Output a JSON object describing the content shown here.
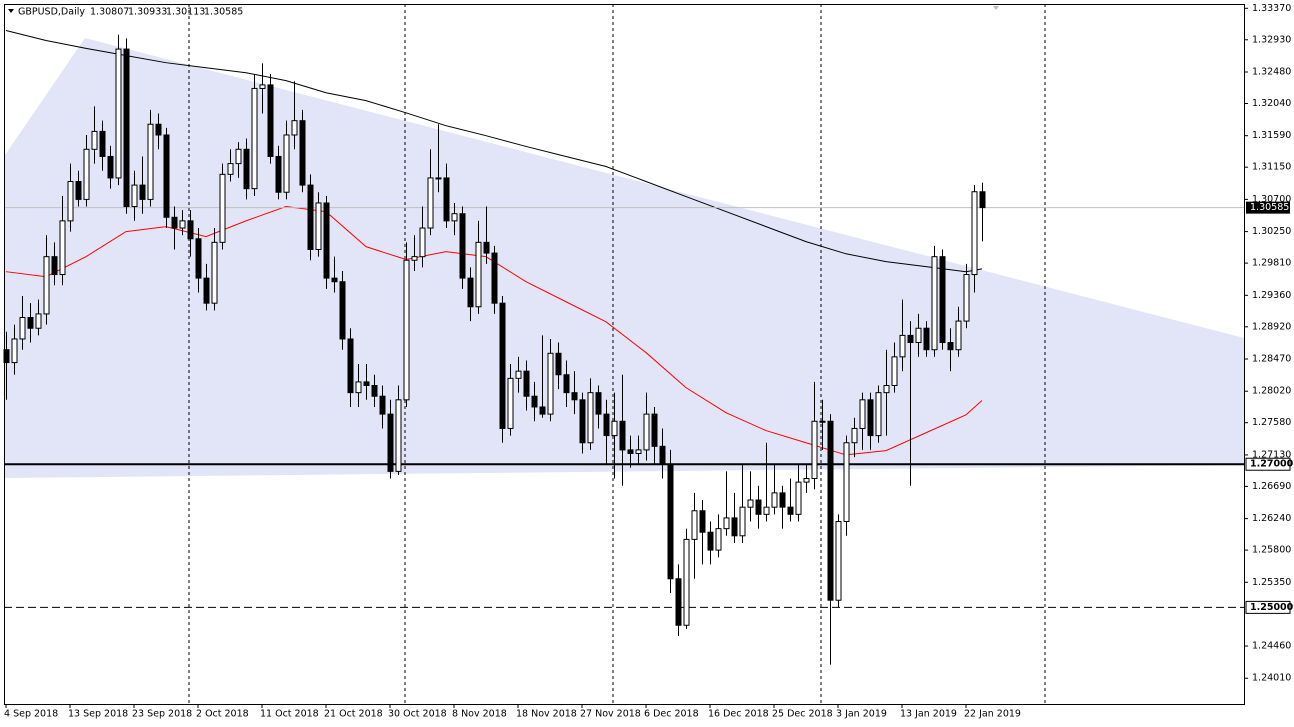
{
  "chart_data": {
    "type": "candlestick",
    "title": "GBPUSD,Daily",
    "categories": [
      "4 Sep 2018",
      null,
      null,
      null,
      null,
      null,
      null,
      null,
      "13 Sep 2018",
      null,
      null,
      null,
      null,
      null,
      null,
      null,
      "23 Sep 2018",
      null,
      null,
      null,
      null,
      null,
      null,
      null,
      "2 Oct 2018",
      null,
      null,
      null,
      null,
      null,
      null,
      null,
      "11 Oct 2018",
      null,
      null,
      null,
      null,
      null,
      null,
      null,
      "21 Oct 2018",
      null,
      null,
      null,
      null,
      null,
      null,
      null,
      "30 Oct 2018",
      null,
      null,
      null,
      null,
      null,
      null,
      null,
      "8 Nov 2018",
      null,
      null,
      null,
      null,
      null,
      null,
      null,
      "18 Nov 2018",
      null,
      null,
      null,
      null,
      null,
      null,
      null,
      "27 Nov 2018",
      null,
      null,
      null,
      null,
      null,
      null,
      null,
      "6 Dec 2018",
      null,
      null,
      null,
      null,
      null,
      null,
      null,
      "16 Dec 2018",
      null,
      null,
      null,
      null,
      null,
      null,
      null,
      "25 Dec 2018",
      null,
      null,
      null,
      null,
      null,
      null,
      null,
      "3 Jan 2019",
      null,
      null,
      null,
      null,
      null,
      null,
      null,
      "13 Jan 2019",
      null,
      null,
      null,
      null,
      null,
      null,
      null,
      "22 Jan 2019",
      null,
      null
    ],
    "candles": [
      [
        1.286,
        1.2885,
        1.279,
        1.2842
      ],
      [
        1.2842,
        1.2895,
        1.2825,
        1.2875
      ],
      [
        1.2875,
        1.2935,
        1.286,
        1.2905
      ],
      [
        1.2905,
        1.2925,
        1.287,
        1.289
      ],
      [
        1.289,
        1.293,
        1.288,
        1.291
      ],
      [
        1.291,
        1.302,
        1.2895,
        1.299
      ],
      [
        1.299,
        1.301,
        1.295,
        1.2965
      ],
      [
        1.2965,
        1.3075,
        1.295,
        1.304
      ],
      [
        1.304,
        1.312,
        1.3025,
        1.3095
      ],
      [
        1.3095,
        1.311,
        1.306,
        1.307
      ],
      [
        1.307,
        1.316,
        1.306,
        1.314
      ],
      [
        1.314,
        1.32,
        1.312,
        1.3165
      ],
      [
        1.3165,
        1.318,
        1.311,
        1.313
      ],
      [
        1.313,
        1.3145,
        1.3085,
        1.31
      ],
      [
        1.31,
        1.33,
        1.309,
        1.328
      ],
      [
        1.328,
        1.3295,
        1.305,
        1.306
      ],
      [
        1.306,
        1.311,
        1.304,
        1.309
      ],
      [
        1.309,
        1.313,
        1.305,
        1.307
      ],
      [
        1.307,
        1.3195,
        1.306,
        1.3175
      ],
      [
        1.3175,
        1.319,
        1.314,
        1.316
      ],
      [
        1.316,
        1.317,
        1.303,
        1.3045
      ],
      [
        1.3045,
        1.306,
        1.3,
        1.303
      ],
      [
        1.303,
        1.3055,
        1.302,
        1.304
      ],
      [
        1.304,
        1.3055,
        1.299,
        1.3015
      ],
      [
        1.3015,
        1.303,
        1.294,
        1.296
      ],
      [
        1.296,
        1.298,
        1.2915,
        1.2925
      ],
      [
        1.2925,
        1.303,
        1.2915,
        1.301
      ],
      [
        1.301,
        1.312,
        1.3,
        1.3105
      ],
      [
        1.3105,
        1.314,
        1.3095,
        1.312
      ],
      [
        1.312,
        1.315,
        1.31,
        1.314
      ],
      [
        1.314,
        1.3155,
        1.307,
        1.3085
      ],
      [
        1.3085,
        1.3245,
        1.3075,
        1.3225
      ],
      [
        1.3225,
        1.326,
        1.319,
        1.323
      ],
      [
        1.323,
        1.3245,
        1.312,
        1.313
      ],
      [
        1.313,
        1.3145,
        1.307,
        1.308
      ],
      [
        1.308,
        1.318,
        1.307,
        1.316
      ],
      [
        1.316,
        1.3235,
        1.314,
        1.318
      ],
      [
        1.318,
        1.3195,
        1.308,
        1.309
      ],
      [
        1.309,
        1.3105,
        1.2985,
        1.3
      ],
      [
        1.3,
        1.308,
        1.299,
        1.3065
      ],
      [
        1.3065,
        1.3075,
        1.2945,
        1.296
      ],
      [
        1.296,
        1.299,
        1.294,
        1.2955
      ],
      [
        1.2955,
        1.297,
        1.286,
        1.2875
      ],
      [
        1.2875,
        1.289,
        1.278,
        1.28
      ],
      [
        1.28,
        1.284,
        1.278,
        1.2815
      ],
      [
        1.2815,
        1.284,
        1.279,
        1.281
      ],
      [
        1.281,
        1.2825,
        1.278,
        1.2795
      ],
      [
        1.2795,
        1.281,
        1.275,
        1.277
      ],
      [
        1.277,
        1.279,
        1.268,
        1.269
      ],
      [
        1.269,
        1.281,
        1.2685,
        1.279
      ],
      [
        1.279,
        1.301,
        1.278,
        1.2985
      ],
      [
        1.2985,
        1.302,
        1.297,
        1.299
      ],
      [
        1.299,
        1.306,
        1.2975,
        1.303
      ],
      [
        1.303,
        1.314,
        1.302,
        1.31
      ],
      [
        1.31,
        1.3175,
        1.308,
        1.31
      ],
      [
        1.31,
        1.312,
        1.303,
        1.304
      ],
      [
        1.304,
        1.3065,
        1.302,
        1.305
      ],
      [
        1.305,
        1.306,
        1.2945,
        1.296
      ],
      [
        1.296,
        1.2975,
        1.29,
        1.292
      ],
      [
        1.292,
        1.304,
        1.291,
        1.301
      ],
      [
        1.301,
        1.306,
        1.298,
        1.2995
      ],
      [
        1.2995,
        1.3005,
        1.291,
        1.2925
      ],
      [
        1.2925,
        1.2935,
        1.273,
        1.275
      ],
      [
        1.275,
        1.284,
        1.274,
        1.282
      ],
      [
        1.282,
        1.285,
        1.28,
        1.283
      ],
      [
        1.283,
        1.2845,
        1.2775,
        1.2795
      ],
      [
        1.2795,
        1.2815,
        1.276,
        1.278
      ],
      [
        1.278,
        1.288,
        1.2765,
        1.277
      ],
      [
        1.277,
        1.2875,
        1.276,
        1.2855
      ],
      [
        1.2855,
        1.287,
        1.2805,
        1.2825
      ],
      [
        1.2825,
        1.2845,
        1.278,
        1.28
      ],
      [
        1.28,
        1.283,
        1.277,
        1.279
      ],
      [
        1.279,
        1.28,
        1.2715,
        1.273
      ],
      [
        1.273,
        1.282,
        1.272,
        1.28
      ],
      [
        1.28,
        1.281,
        1.275,
        1.277
      ],
      [
        1.277,
        1.279,
        1.27,
        1.274
      ],
      [
        1.274,
        1.28,
        1.268,
        1.276
      ],
      [
        1.276,
        1.2825,
        1.267,
        1.272
      ],
      [
        1.272,
        1.274,
        1.2695,
        1.2715
      ],
      [
        1.2715,
        1.274,
        1.27,
        1.272
      ],
      [
        1.272,
        1.28,
        1.2705,
        1.277
      ],
      [
        1.277,
        1.278,
        1.27,
        1.2725
      ],
      [
        1.2725,
        1.275,
        1.268,
        1.27
      ],
      [
        1.27,
        1.272,
        1.252,
        1.254
      ],
      [
        1.254,
        1.256,
        1.246,
        1.2475
      ],
      [
        1.2475,
        1.261,
        1.247,
        1.2595
      ],
      [
        1.2595,
        1.266,
        1.254,
        1.2635
      ],
      [
        1.2635,
        1.265,
        1.256,
        1.2605
      ],
      [
        1.2605,
        1.262,
        1.256,
        1.258
      ],
      [
        1.258,
        1.263,
        1.257,
        1.261
      ],
      [
        1.261,
        1.269,
        1.26,
        1.2625
      ],
      [
        1.2625,
        1.266,
        1.259,
        1.26
      ],
      [
        1.26,
        1.27,
        1.259,
        1.264
      ],
      [
        1.264,
        1.269,
        1.262,
        1.265
      ],
      [
        1.265,
        1.267,
        1.261,
        1.263
      ],
      [
        1.263,
        1.273,
        1.262,
        1.264
      ],
      [
        1.264,
        1.27,
        1.263,
        1.266
      ],
      [
        1.266,
        1.267,
        1.261,
        1.264
      ],
      [
        1.264,
        1.268,
        1.262,
        1.263
      ],
      [
        1.263,
        1.27,
        1.262,
        1.2675
      ],
      [
        1.2675,
        1.27,
        1.266,
        1.268
      ],
      [
        1.268,
        1.2815,
        1.2665,
        1.276
      ],
      [
        1.276,
        1.279,
        1.272,
        1.276
      ],
      [
        1.276,
        1.277,
        1.242,
        1.251
      ],
      [
        1.251,
        1.263,
        1.25,
        1.262
      ],
      [
        1.262,
        1.274,
        1.26,
        1.273
      ],
      [
        1.273,
        1.2765,
        1.271,
        1.275
      ],
      [
        1.275,
        1.28,
        1.272,
        1.279
      ],
      [
        1.279,
        1.28,
        1.272,
        1.274
      ],
      [
        1.274,
        1.281,
        1.273,
        1.28
      ],
      [
        1.28,
        1.286,
        1.274,
        1.281
      ],
      [
        1.281,
        1.287,
        1.28,
        1.285
      ],
      [
        1.285,
        1.293,
        1.283,
        1.288
      ],
      [
        1.288,
        1.29,
        1.267,
        1.287
      ],
      [
        1.287,
        1.291,
        1.285,
        1.289
      ],
      [
        1.289,
        1.29,
        1.285,
        1.286
      ],
      [
        1.286,
        1.3005,
        1.285,
        1.299
      ],
      [
        1.299,
        1.3,
        1.286,
        1.287
      ],
      [
        1.287,
        1.289,
        1.283,
        1.286
      ],
      [
        1.286,
        1.292,
        1.285,
        1.29
      ],
      [
        1.29,
        1.298,
        1.289,
        1.2965
      ],
      [
        1.2965,
        1.309,
        1.294,
        1.30807
      ],
      [
        1.30807,
        1.30933,
        1.30113,
        1.30585
      ]
    ],
    "moving_averages": [
      {
        "color": "#ff0000",
        "x": [
          0,
          5,
          10,
          15,
          20,
          25,
          30,
          35,
          40,
          45,
          50,
          55,
          60,
          65,
          70,
          75,
          80,
          85,
          90,
          95,
          100,
          105,
          110,
          115,
          120,
          122
        ],
        "values": [
          1.2969,
          1.2962,
          1.299,
          1.3025,
          1.3032,
          1.3018,
          1.304,
          1.306,
          1.3053,
          1.3004,
          1.2986,
          1.2997,
          1.299,
          1.2955,
          1.2927,
          1.2899,
          1.2856,
          1.2807,
          1.2772,
          1.2747,
          1.273,
          1.2713,
          1.2719,
          1.2744,
          1.2769,
          1.2789
        ]
      },
      {
        "color": "#000000",
        "x": [
          0,
          5,
          10,
          15,
          20,
          25,
          30,
          35,
          40,
          45,
          50,
          55,
          60,
          65,
          70,
          75,
          80,
          85,
          90,
          95,
          100,
          105,
          110,
          115,
          120,
          122
        ],
        "values": [
          1.3306,
          1.3292,
          1.3281,
          1.3271,
          1.3261,
          1.3254,
          1.3247,
          1.3236,
          1.3219,
          1.3208,
          1.3191,
          1.3173,
          1.3159,
          1.3144,
          1.313,
          1.3116,
          1.3095,
          1.3074,
          1.3053,
          1.3032,
          1.3011,
          1.2994,
          1.2983,
          1.2976,
          1.2969,
          1.2973
        ]
      }
    ],
    "hlines": [
      {
        "value": 1.27,
        "label": "1.27000",
        "style": "solid"
      },
      {
        "value": 1.25,
        "label": "1.25000",
        "style": "dashed"
      }
    ],
    "current_price": {
      "value": 1.30585,
      "label": "1.30585"
    },
    "ylim": [
      1.2365,
      1.3343
    ],
    "yticks": [
      {
        "value": 1.3337,
        "label": "1.33370"
      },
      {
        "value": 1.3293,
        "label": "1.32930"
      },
      {
        "value": 1.3248,
        "label": "1.32480"
      },
      {
        "value": 1.3204,
        "label": "1.32040"
      },
      {
        "value": 1.3159,
        "label": "1.31590"
      },
      {
        "value": 1.3115,
        "label": "1.31150"
      },
      {
        "value": 1.307,
        "label": "1.30700"
      },
      {
        "value": 1.3025,
        "label": "1.30250"
      },
      {
        "value": 1.2981,
        "label": "1.29810"
      },
      {
        "value": 1.2936,
        "label": "1.29360"
      },
      {
        "value": 1.2892,
        "label": "1.28920"
      },
      {
        "value": 1.2847,
        "label": "1.28470"
      },
      {
        "value": 1.2802,
        "label": "1.28020"
      },
      {
        "value": 1.2758,
        "label": "1.27580"
      },
      {
        "value": 1.2713,
        "label": "1.27130"
      },
      {
        "value": 1.2669,
        "label": "1.26690"
      },
      {
        "value": 1.2624,
        "label": "1.26240"
      },
      {
        "value": 1.258,
        "label": "1.25800"
      },
      {
        "value": 1.2535,
        "label": "1.25350"
      },
      {
        "value": 1.2446,
        "label": "1.24460"
      },
      {
        "value": 1.2401,
        "label": "1.24010"
      }
    ]
  }
}
